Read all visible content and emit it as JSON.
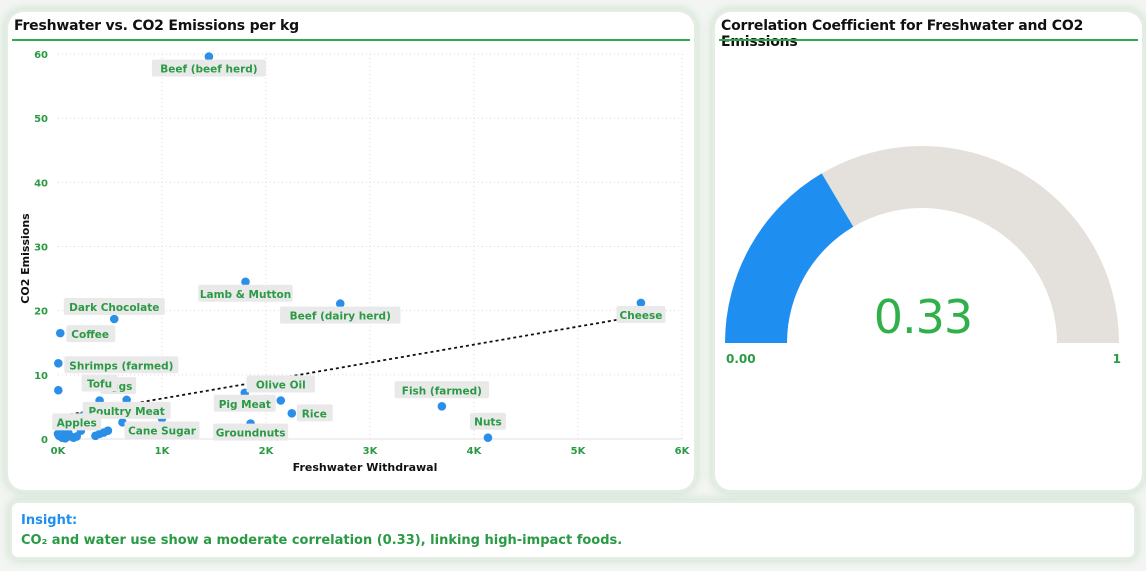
{
  "scatter_title": "Freshwater vs. CO2 Emissions per kg",
  "gauge_title": "Correlation Coefficient for Freshwater and CO2 Emissions",
  "insight": {
    "title": "Insight:",
    "text": "CO₂ and water use show a moderate correlation (0.33), linking high-impact foods."
  },
  "colors": {
    "accent_green": "#33a852",
    "point_blue": "#2b8fe8",
    "gauge_fill": "#1e8ff0",
    "gauge_track": "#e4e0db",
    "label_green": "#2a9a44"
  },
  "chart_data": [
    {
      "type": "scatter",
      "title": "Freshwater vs. CO2 Emissions per kg",
      "xlabel": "Freshwater Withdrawal",
      "ylabel": "CO2 Emissions",
      "xlim": [
        0,
        6000
      ],
      "ylim": [
        0,
        60
      ],
      "x_ticks": [
        "0K",
        "1K",
        "2K",
        "3K",
        "4K",
        "5K",
        "6K"
      ],
      "y_ticks": [
        "0",
        "10",
        "20",
        "30",
        "40",
        "50",
        "60"
      ],
      "grid": true,
      "trendline": {
        "style": "dotted",
        "from": [
          0,
          3.5
        ],
        "to": [
          5600,
          19.2
        ]
      },
      "points": [
        {
          "label": "Beef (beef herd)",
          "x": 1451,
          "y": 59.6
        },
        {
          "label": "Lamb & Mutton",
          "x": 1803,
          "y": 24.5
        },
        {
          "label": "Beef (dairy herd)",
          "x": 2714,
          "y": 21.1
        },
        {
          "label": "Cheese",
          "x": 5605,
          "y": 21.2
        },
        {
          "label": "Dark Chocolate",
          "x": 541,
          "y": 18.7
        },
        {
          "label": "Coffee",
          "x": 22,
          "y": 16.5
        },
        {
          "label": "Shrimps (farmed)",
          "x": 3,
          "y": 11.8
        },
        {
          "label": "Fish (farmed)",
          "x": 3691,
          "y": 5.1
        },
        {
          "label": "Nuts",
          "x": 4134,
          "y": 0.2
        },
        {
          "label": "Olive Oil",
          "x": 2142,
          "y": 6.0
        },
        {
          "label": "Pig Meat",
          "x": 1796,
          "y": 7.2
        },
        {
          "label": "Rice",
          "x": 2248,
          "y": 4.0
        },
        {
          "label": "Poultry Meat",
          "x": 660,
          "y": 6.1
        },
        {
          "label": "Eggs",
          "x": 578,
          "y": 4.5
        },
        {
          "label": "Cane Sugar",
          "x": 1000,
          "y": 3.2
        },
        {
          "label": "Groundnuts",
          "x": 1852,
          "y": 2.4
        },
        {
          "label": "Tofu",
          "x": 400,
          "y": 6.0
        },
        {
          "label": "Apples",
          "x": 180,
          "y": 0.4
        },
        {
          "label": "",
          "x": 3,
          "y": 7.6
        },
        {
          "label": "",
          "x": 3,
          "y": 3.0
        },
        {
          "label": "",
          "x": 235,
          "y": 3.6
        },
        {
          "label": "",
          "x": 620,
          "y": 2.6
        },
        {
          "label": "",
          "x": 220,
          "y": 1.3
        },
        {
          "label": "",
          "x": 480,
          "y": 1.3
        },
        {
          "label": "",
          "x": 440,
          "y": 1.0
        },
        {
          "label": "",
          "x": 400,
          "y": 0.8
        },
        {
          "label": "",
          "x": 360,
          "y": 0.5
        },
        {
          "label": "",
          "x": 30,
          "y": 1.4
        },
        {
          "label": "",
          "x": 60,
          "y": 1.0
        },
        {
          "label": "",
          "x": 90,
          "y": 0.7
        },
        {
          "label": "",
          "x": 120,
          "y": 0.4
        },
        {
          "label": "",
          "x": 150,
          "y": 0.2
        },
        {
          "label": "",
          "x": 10,
          "y": 0.5
        },
        {
          "label": "",
          "x": 40,
          "y": 0.2
        },
        {
          "label": "",
          "x": 70,
          "y": 0.1
        },
        {
          "label": "",
          "x": 100,
          "y": 0.9
        },
        {
          "label": "",
          "x": 0,
          "y": 0.8
        },
        {
          "label": "",
          "x": 25,
          "y": 0.7
        }
      ]
    },
    {
      "type": "gauge",
      "title": "Correlation Coefficient for Freshwater and CO2 Emissions",
      "value": 0.33,
      "value_label": "0.33",
      "min": 0,
      "max": 1,
      "min_label": "0.00",
      "max_label": "1"
    }
  ]
}
